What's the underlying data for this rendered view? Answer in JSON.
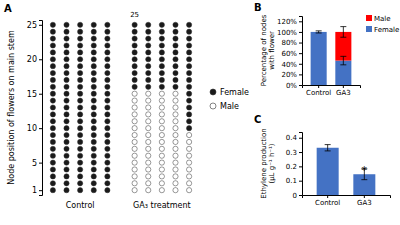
{
  "chart_data": [
    {
      "type": "scatter",
      "title": "A",
      "ylabel": "Node position of flowers on main stem",
      "categories": [
        null,
        null,
        null,
        null,
        null,
        null,
        null,
        null,
        null,
        null
      ],
      "series": [
        {
          "name": "Female",
          "color": "#1a1a1a",
          "values": [
            [
              1,
              2,
              3,
              4,
              5,
              6,
              7,
              8,
              9,
              10,
              11,
              12,
              13,
              14,
              15,
              16,
              17,
              18,
              19,
              20,
              21,
              22,
              23,
              24,
              25
            ],
            [
              1,
              2,
              3,
              4,
              5,
              6,
              7,
              8,
              9,
              10,
              11,
              12,
              13,
              14,
              15,
              16,
              17,
              18,
              19,
              20,
              21,
              22,
              23,
              24,
              25
            ],
            [
              1,
              2,
              3,
              4,
              5,
              6,
              7,
              8,
              9,
              10,
              11,
              12,
              13,
              14,
              15,
              16,
              17,
              18,
              19,
              20,
              21,
              22,
              23,
              24,
              25
            ],
            [
              1,
              2,
              3,
              4,
              5,
              6,
              7,
              8,
              9,
              10,
              11,
              12,
              13,
              14,
              15,
              16,
              17,
              18,
              19,
              20,
              21,
              22,
              23,
              24,
              25
            ],
            [
              1,
              2,
              3,
              4,
              5,
              6,
              7,
              8,
              9,
              10,
              11,
              12,
              13,
              14,
              15,
              16,
              17,
              18,
              19,
              20,
              21,
              22,
              23,
              24,
              25
            ],
            [
              16,
              17,
              18,
              19,
              20,
              21,
              22,
              23,
              24,
              25
            ],
            [
              16,
              17,
              18,
              19,
              20,
              21,
              22,
              23,
              24,
              25
            ],
            [
              16,
              17,
              18,
              19,
              20,
              21,
              22,
              23,
              24,
              25
            ],
            [
              16,
              17,
              18,
              19,
              20,
              21,
              22,
              23,
              24,
              25
            ],
            [
              10,
              11,
              12,
              13,
              14,
              15,
              16,
              17,
              18,
              19,
              20,
              21,
              22,
              23,
              24,
              25
            ]
          ]
        },
        {
          "name": "Male",
          "color": "#ffffff",
          "values": [
            [],
            [],
            [],
            [],
            [],
            [
              1,
              2,
              3,
              4,
              5,
              6,
              7,
              8,
              9,
              10,
              11,
              12,
              13,
              14,
              15
            ],
            [
              1,
              2,
              3,
              4,
              5,
              6,
              7,
              8,
              9,
              10,
              11,
              12,
              13,
              14,
              15
            ],
            [
              1,
              2,
              3,
              4,
              5,
              6,
              7,
              8,
              9,
              10,
              11,
              12,
              13,
              14,
              15
            ],
            [
              1,
              2,
              3,
              4,
              5,
              6,
              7,
              8,
              9,
              10,
              11,
              12,
              13,
              14,
              15
            ],
            [
              1,
              2,
              3,
              4,
              5,
              6,
              7,
              8,
              9
            ]
          ]
        }
      ],
      "annotations": [
        {
          "text": "Control",
          "from": 0,
          "to": 4
        },
        {
          "text": "GA₃ treatment",
          "from": 5,
          "to": 9
        },
        {
          "text": "25",
          "category": 5
        }
      ],
      "ylim": [
        0.3,
        25.7
      ],
      "yticks": [
        1,
        5,
        10,
        15,
        20,
        25
      ],
      "tick_labels": "y",
      "grid": false,
      "legend": "right"
    },
    {
      "type": "bar",
      "stacked": true,
      "title": "B",
      "ylabel": "Percentage of nodes\nwith flower",
      "categories": [
        "Control",
        "GA3"
      ],
      "series": [
        {
          "name": "Female",
          "color": "#4472C4",
          "values": [
            100,
            46
          ],
          "errors": [
            2,
            8
          ]
        },
        {
          "name": "Male",
          "color": "#FF0000",
          "values": [
            0,
            54
          ],
          "errors": [
            null,
            10
          ]
        }
      ],
      "ylim": [
        0,
        130
      ],
      "yticks": [
        {
          "value": 0,
          "label": "0%"
        },
        {
          "value": 20,
          "label": "20%"
        },
        {
          "value": 40,
          "label": "40%"
        },
        {
          "value": 60,
          "label": "60%"
        },
        {
          "value": 80,
          "label": "80%"
        },
        {
          "value": 100,
          "label": "100%"
        },
        {
          "value": 120,
          "label": "120%"
        }
      ],
      "grid": false,
      "legend": "upper right"
    },
    {
      "type": "bar",
      "title": "C",
      "ylabel": "Ethylene production\n(μL g⁻¹ h⁻¹)",
      "categories": [
        "Control",
        "GA3"
      ],
      "values": [
        0.33,
        0.145
      ],
      "errors": [
        0.022,
        0.038
      ],
      "color": "#4472C4",
      "annotations": [
        {
          "text": "*",
          "category": 1,
          "y": 0.185
        }
      ],
      "ylim": [
        0,
        0.44
      ],
      "yticks": [
        0,
        0.1,
        0.2,
        0.3,
        0.4
      ],
      "grid": false
    }
  ]
}
